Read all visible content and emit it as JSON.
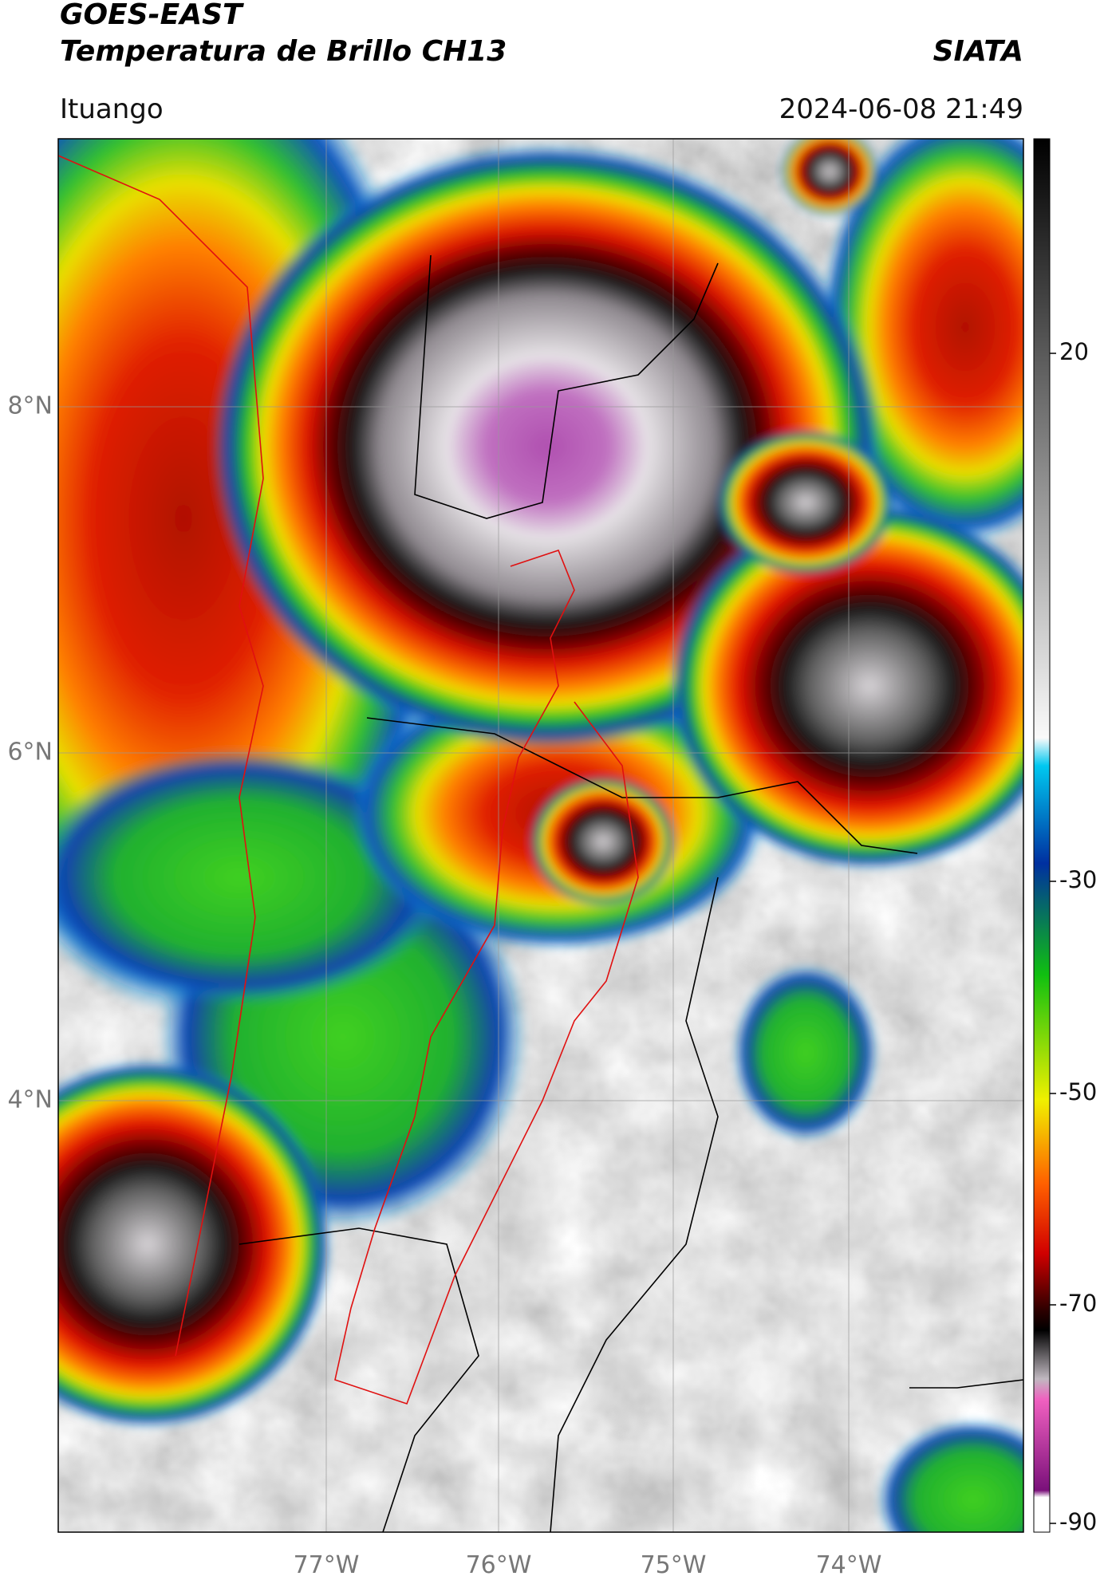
{
  "header": {
    "title": "GOES-EAST",
    "subtitle": "Temperatura de Brillo CH13",
    "brand": "SIATA",
    "region": "Ituango",
    "timestamp": "2024-06-08 21:49"
  },
  "map": {
    "lat_labels": [
      "8°N",
      "6°N",
      "4°N"
    ],
    "lon_labels": [
      "77°W",
      "76°W",
      "75°W",
      "74°W"
    ]
  },
  "colorbar": {
    "tick_labels": [
      "20",
      "-30",
      "-50",
      "-70",
      "-90"
    ]
  }
}
